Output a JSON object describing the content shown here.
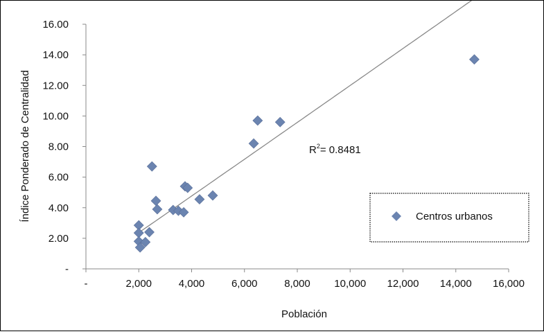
{
  "chart_data": {
    "type": "scatter",
    "xlabel": "Población",
    "ylabel": "Índice Ponderado de Centralidad",
    "x_ticks": [
      "-",
      "2,000",
      "4,000",
      "6,000",
      "8,000",
      "10,000",
      "12,000",
      "14,000",
      "16,000"
    ],
    "y_ticks": [
      "-",
      "2.00",
      "4.00",
      "6.00",
      "8.00",
      "10.00",
      "12.00",
      "14.00",
      "16.00"
    ],
    "xlim": [
      0,
      16000
    ],
    "ylim": [
      0,
      16
    ],
    "grid": false,
    "legend_position": "right",
    "series": [
      {
        "name": "Centros urbanos",
        "color": "#6b84b0",
        "marker": "diamond",
        "points": [
          [
            2000,
            2.85
          ],
          [
            2000,
            2.35
          ],
          [
            2000,
            1.8
          ],
          [
            2050,
            1.4
          ],
          [
            2250,
            1.75
          ],
          [
            2400,
            2.4
          ],
          [
            2500,
            6.7
          ],
          [
            2650,
            4.45
          ],
          [
            2700,
            3.9
          ],
          [
            3300,
            3.85
          ],
          [
            3500,
            3.8
          ],
          [
            3700,
            3.7
          ],
          [
            3750,
            5.4
          ],
          [
            3850,
            5.3
          ],
          [
            4300,
            4.55
          ],
          [
            4800,
            4.8
          ],
          [
            6350,
            8.2
          ],
          [
            6500,
            9.7
          ],
          [
            7350,
            9.6
          ],
          [
            14700,
            13.7
          ]
        ]
      }
    ],
    "trendline": {
      "type": "power",
      "color": "#888888",
      "x_range": [
        2000,
        14700
      ],
      "r_squared_label": "R² = 0.8481",
      "r_prefix": "R",
      "r_exp": "2",
      "r_value": "= 0.8481"
    }
  }
}
